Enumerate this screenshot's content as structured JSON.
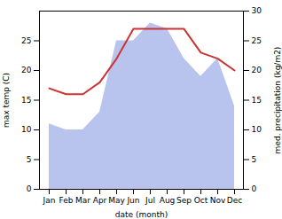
{
  "chart_data": {
    "type": "line",
    "xlabel": "date (month)",
    "ylabel": "max temp (C)",
    "y2label": "med. precipitation (kg/m2)",
    "categories": [
      "Jan",
      "Feb",
      "Mar",
      "Apr",
      "May",
      "Jun",
      "Jul",
      "Aug",
      "Sep",
      "Oct",
      "Nov",
      "Dec"
    ],
    "series": [
      {
        "type": "area",
        "color": "#b8c4ee",
        "values": [
          11,
          10,
          10,
          13,
          25,
          25,
          28,
          27,
          22,
          19,
          22,
          14
        ]
      },
      {
        "type": "line",
        "color": "#cc3333",
        "axis": "y2",
        "values": [
          17,
          16,
          16,
          18,
          22,
          27,
          27,
          27,
          27,
          23,
          22,
          20
        ]
      }
    ],
    "ylim": [
      0,
      30
    ],
    "yticks": [
      0,
      5,
      10,
      15,
      20,
      25
    ],
    "y2lim": [
      0,
      30
    ],
    "y2ticks": [
      0,
      5,
      10,
      15,
      20,
      25,
      30
    ],
    "grid": false
  }
}
